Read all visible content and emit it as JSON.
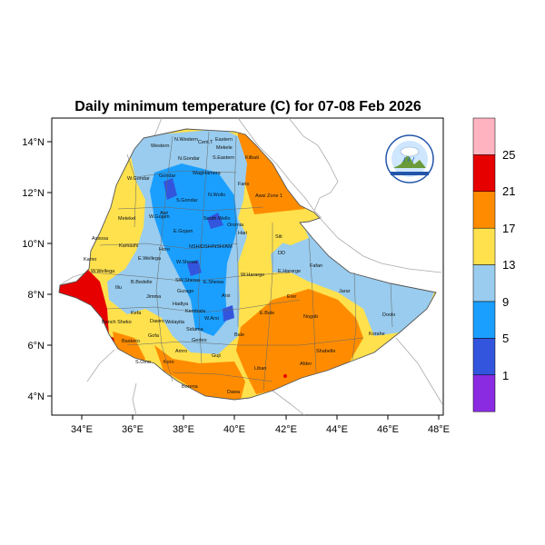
{
  "title": "Daily minimum temperature (C) for 07-08 Feb 2026",
  "axes": {
    "x_ticks": [
      "34°E",
      "36°E",
      "38°E",
      "40°E",
      "42°E",
      "44°E",
      "46°E",
      "48°E"
    ],
    "y_ticks": [
      "14°N",
      "12°N",
      "10°N",
      "8°N",
      "6°N",
      "4°N"
    ]
  },
  "colorbar": {
    "labels": [
      "25",
      "21",
      "17",
      "13",
      "9",
      "5",
      "1"
    ],
    "colors": [
      "#ffb3c1",
      "#e60000",
      "#ff8c00",
      "#ffe14d",
      "#99ccee",
      "#1a9fff",
      "#3355dd",
      "#8a2be2"
    ]
  },
  "regions": [
    {
      "name": "Western",
      "color": "#1a9fff"
    },
    {
      "name": "N.Western",
      "color": "#99ccee"
    },
    {
      "name": "Cent.T",
      "color": "#99ccee"
    },
    {
      "name": "Eastern",
      "color": "#99ccee"
    },
    {
      "name": "Mekele",
      "color": "#99ccee"
    },
    {
      "name": "N.Gondar",
      "color": "#99ccee"
    },
    {
      "name": "S.Eastern",
      "color": "#99ccee"
    },
    {
      "name": "Kilbati",
      "color": "#ff8c00"
    },
    {
      "name": "W.Gondar",
      "color": "#ffe14d"
    },
    {
      "name": "Gondar",
      "color": "#1a9fff"
    },
    {
      "name": "WagHamera",
      "color": "#99ccee"
    },
    {
      "name": "S.Gondar",
      "color": "#1a9fff"
    },
    {
      "name": "N.Wollo",
      "color": "#99ccee"
    },
    {
      "name": "Fans",
      "color": "#ff8c00"
    },
    {
      "name": "Awsi Zone 1",
      "color": "#ff8c00"
    },
    {
      "name": "Metekel",
      "color": "#ffe14d"
    },
    {
      "name": "W.Gojam",
      "color": "#1a9fff"
    },
    {
      "name": "Awi",
      "color": "#1a9fff"
    },
    {
      "name": "South Wello",
      "color": "#1a9fff"
    },
    {
      "name": "E.Gojam",
      "color": "#99ccee"
    },
    {
      "name": "Oromia",
      "color": "#99ccee"
    },
    {
      "name": "Hari",
      "color": "#99ccee"
    },
    {
      "name": "Kamashi",
      "color": "#ffe14d"
    },
    {
      "name": "Horo",
      "color": "#99ccee"
    },
    {
      "name": "NSH/DSH/NSH/AM",
      "color": "#1a9fff"
    },
    {
      "name": "Siti",
      "color": "#ffe14d"
    },
    {
      "name": "DD",
      "color": "#ffe14d"
    },
    {
      "name": "Assosa",
      "color": "#ffe14d"
    },
    {
      "name": "E.Wellega",
      "color": "#99ccee"
    },
    {
      "name": "W.Shewa",
      "color": "#99ccee"
    },
    {
      "name": "Fafan",
      "color": "#ffe14d"
    },
    {
      "name": "W.Hararge",
      "color": "#99ccee"
    },
    {
      "name": "E.Hararge",
      "color": "#99ccee"
    },
    {
      "name": "Kamo",
      "color": "#e60000"
    },
    {
      "name": "W.Wellega",
      "color": "#ffe14d"
    },
    {
      "name": "B.Bedelle",
      "color": "#99ccee"
    },
    {
      "name": "SW.Shewa",
      "color": "#1a9fff"
    },
    {
      "name": "E.Shewa",
      "color": "#99ccee"
    },
    {
      "name": "Jarar",
      "color": "#99ccee"
    },
    {
      "name": "Illu",
      "color": "#99ccee"
    },
    {
      "name": "Jimma",
      "color": "#99ccee"
    },
    {
      "name": "Gurage",
      "color": "#1a9fff"
    },
    {
      "name": "Arsi",
      "color": "#1a9fff"
    },
    {
      "name": "Erer",
      "color": "#ff8c00"
    },
    {
      "name": "Doolo",
      "color": "#99ccee"
    },
    {
      "name": "Kefa",
      "color": "#99ccee"
    },
    {
      "name": "Hadiya",
      "color": "#1a9fff"
    },
    {
      "name": "Kembata",
      "color": "#1a9fff"
    },
    {
      "name": "E.Bale",
      "color": "#99ccee"
    },
    {
      "name": "Nogob",
      "color": "#ff8c00"
    },
    {
      "name": "Bench Sheko",
      "color": "#ffe14d"
    },
    {
      "name": "W.Arsi",
      "color": "#1a9fff"
    },
    {
      "name": "Dawro",
      "color": "#99ccee"
    },
    {
      "name": "Wolayita",
      "color": "#99ccee"
    },
    {
      "name": "Sidama",
      "color": "#99ccee"
    },
    {
      "name": "Bale",
      "color": "#1a9fff"
    },
    {
      "name": "Korahe",
      "color": "#ff8c00"
    },
    {
      "name": "Gofa",
      "color": "#ffe14d"
    },
    {
      "name": "Basketo",
      "color": "#ffe14d"
    },
    {
      "name": "Gedeo",
      "color": "#99ccee"
    },
    {
      "name": "Amro",
      "color": "#99ccee"
    },
    {
      "name": "Guji",
      "color": "#ffe14d"
    },
    {
      "name": "Shabelle",
      "color": "#ff8c00"
    },
    {
      "name": "Liban",
      "color": "#ff8c00"
    },
    {
      "name": "S.Omo",
      "color": "#e60000"
    },
    {
      "name": "Koro",
      "color": "#ffe14d"
    },
    {
      "name": "Afder",
      "color": "#ff8c00"
    },
    {
      "name": "Borena",
      "color": "#ffe14d"
    },
    {
      "name": "Dawa",
      "color": "#ffe14d"
    }
  ]
}
